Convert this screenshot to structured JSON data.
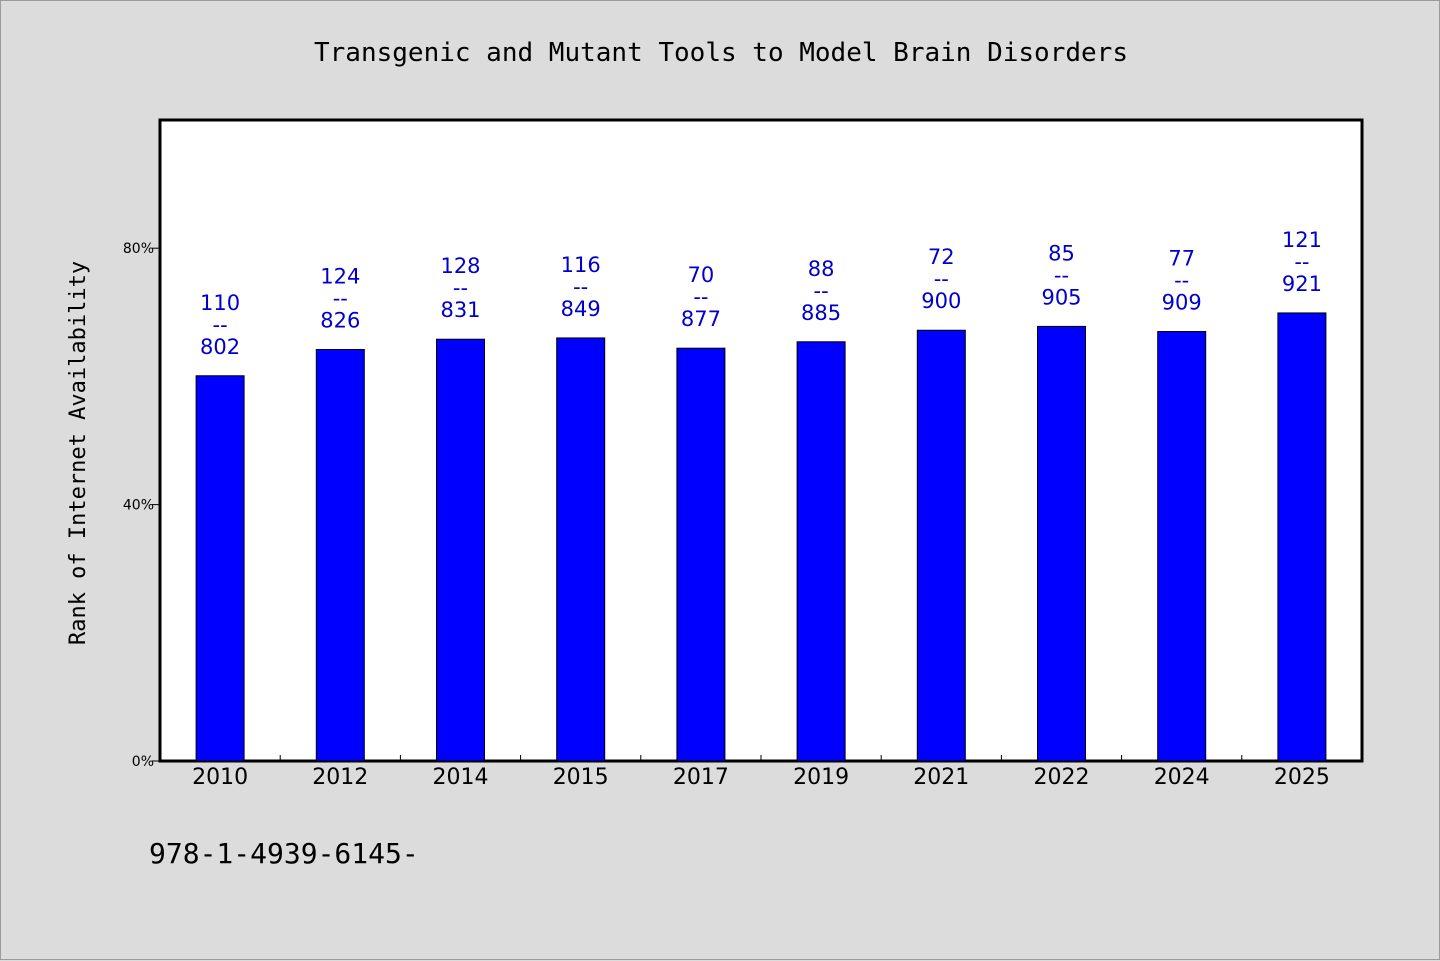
{
  "chart_data": {
    "type": "bar",
    "title": "Transgenic and Mutant Tools to Model Brain Disorders",
    "xlabel": "",
    "ylabel": "Rank of Internet Availability",
    "ylim": [
      0,
      100
    ],
    "yticks": [
      0,
      40,
      80
    ],
    "ytick_labels": [
      "0%",
      "40%",
      "80%"
    ],
    "grid": false,
    "legend": "none",
    "categories": [
      "2010",
      "2012",
      "2014",
      "2015",
      "2017",
      "2019",
      "2021",
      "2022",
      "2024",
      "2025"
    ],
    "values": [
      60.1,
      64.2,
      65.8,
      66.0,
      64.4,
      65.4,
      67.2,
      67.8,
      67.0,
      69.9
    ],
    "data_labels": [
      {
        "top": "110",
        "sep": "--",
        "bottom": "802"
      },
      {
        "top": "124",
        "sep": "--",
        "bottom": "826"
      },
      {
        "top": "128",
        "sep": "--",
        "bottom": "831"
      },
      {
        "top": "116",
        "sep": "--",
        "bottom": "849"
      },
      {
        "top": "70",
        "sep": "--",
        "bottom": "877"
      },
      {
        "top": "88",
        "sep": "--",
        "bottom": "885"
      },
      {
        "top": "72",
        "sep": "--",
        "bottom": "900"
      },
      {
        "top": "85",
        "sep": "--",
        "bottom": "905"
      },
      {
        "top": "77",
        "sep": "--",
        "bottom": "909"
      },
      {
        "top": "121",
        "sep": "--",
        "bottom": "921"
      }
    ],
    "footer": "978-1-4939-6145-",
    "bar_color": "#0000ff",
    "label_color": "#0000cc"
  }
}
